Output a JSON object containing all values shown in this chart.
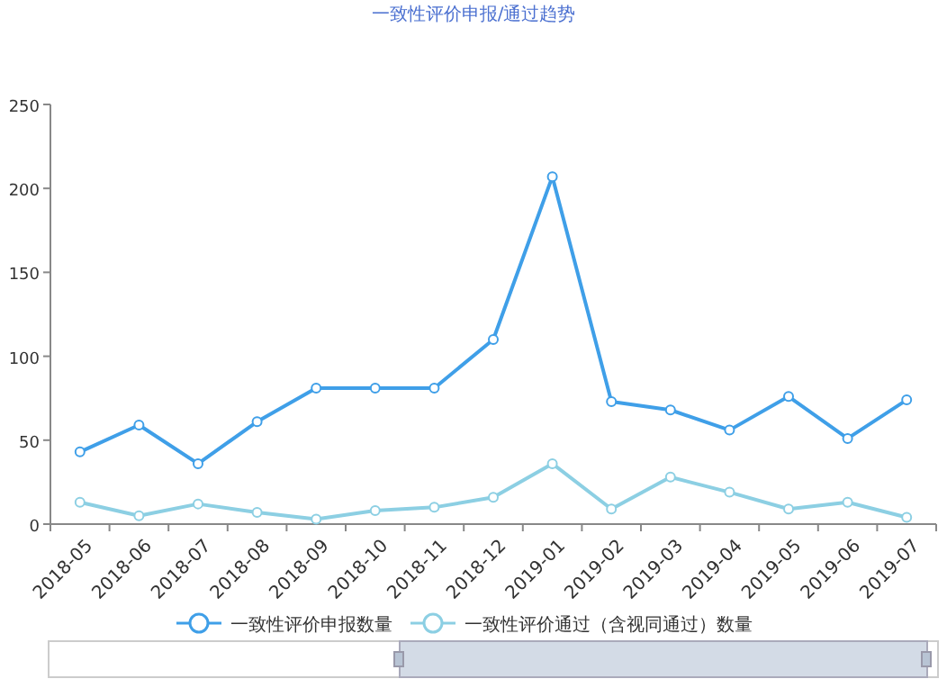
{
  "chart_data": {
    "type": "line",
    "title": "一致性评价申报/通过趋势",
    "categories": [
      "2018-05",
      "2018-06",
      "2018-07",
      "2018-08",
      "2018-09",
      "2018-10",
      "2018-11",
      "2018-12",
      "2019-01",
      "2019-02",
      "2019-03",
      "2019-04",
      "2019-05",
      "2019-06",
      "2019-07"
    ],
    "series": [
      {
        "name": "一致性评价申报数量",
        "color": "#3f9fe8",
        "values": [
          43,
          59,
          36,
          61,
          81,
          81,
          81,
          110,
          207,
          73,
          68,
          56,
          76,
          51,
          74
        ]
      },
      {
        "name": "一致性评价通过（含视同通过）数量",
        "color": "#8ccfe3",
        "values": [
          13,
          5,
          12,
          7,
          3,
          8,
          10,
          16,
          36,
          9,
          28,
          19,
          9,
          13,
          4
        ]
      }
    ],
    "ylim": [
      0,
      250
    ],
    "yticks": [
      0,
      50,
      100,
      150,
      200,
      250
    ],
    "grid": false,
    "legend": "bottom",
    "marker": "circle",
    "line_style": "solid"
  }
}
